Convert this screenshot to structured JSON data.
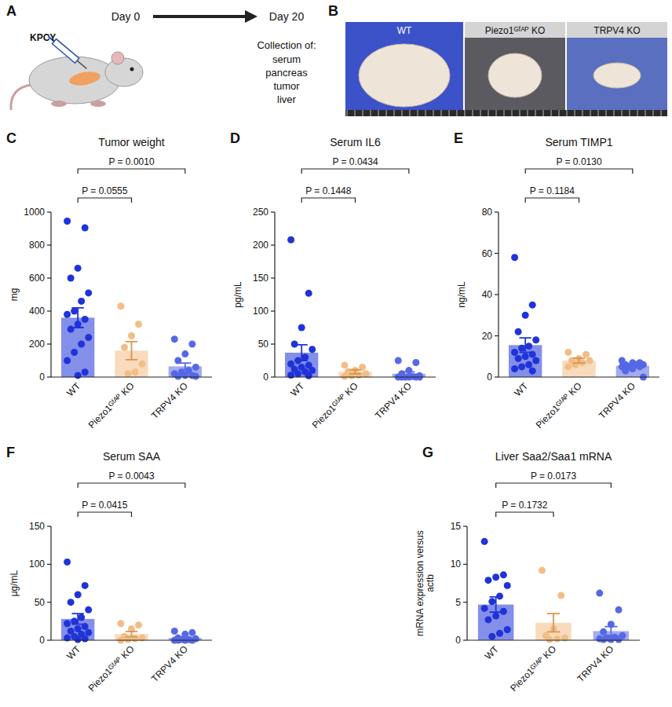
{
  "panels": {
    "A": {
      "label": "A",
      "day_start": "Day 0",
      "day_end": "Day 20",
      "injection": "KPCY",
      "collection_title": "Collection of:",
      "collected": [
        "serum",
        "pancreas",
        "tumor",
        "liver"
      ]
    },
    "B": {
      "label": "B",
      "photo_labels": [
        "WT",
        "Piezo1ᴳᶠᴬᴾ KO",
        "TRPV4 KO"
      ]
    }
  },
  "chart_data": [
    {
      "type": "bar",
      "panel": "C",
      "title": "Tumor weight",
      "y_label": "mg",
      "categories": [
        "WT",
        "Piezo1ᴳᶠᴬᴾ KO",
        "TRPV4 KO"
      ],
      "values": [
        360,
        160,
        65
      ],
      "errors": [
        60,
        55,
        20
      ],
      "points": [
        [
          945,
          905,
          660,
          600,
          510,
          460,
          400,
          380,
          350,
          320,
          290,
          240,
          200,
          150,
          100,
          30,
          10
        ],
        [
          430,
          320,
          250,
          180,
          80,
          30,
          20
        ],
        [
          230,
          200,
          140,
          100,
          60,
          40,
          30,
          20,
          10,
          10,
          5,
          5
        ]
      ],
      "colors": [
        "#1f33d9",
        "#f2be86",
        "#5568e6"
      ],
      "ylim": [
        0,
        1000
      ],
      "yticks": [
        0,
        200,
        400,
        600,
        800,
        1000
      ],
      "annotations": [
        "P = 0.0555",
        "P = 0.0010"
      ]
    },
    {
      "type": "bar",
      "panel": "D",
      "title": "Serum IL6",
      "y_label": "pg/mL",
      "categories": [
        "WT",
        "Piezo1ᴳᶠᴬᴾ KO",
        "TRPV4 KO"
      ],
      "values": [
        37,
        8,
        5
      ],
      "errors": [
        12,
        3,
        3
      ],
      "points": [
        [
          208,
          127,
          75,
          50,
          42,
          30,
          25,
          20,
          18,
          15,
          12,
          10,
          8,
          5,
          3,
          2
        ],
        [
          18,
          15,
          10,
          8,
          5,
          3,
          2,
          1
        ],
        [
          25,
          22,
          10,
          5,
          2,
          1,
          0,
          0,
          0,
          0,
          0,
          0
        ]
      ],
      "colors": [
        "#1f33d9",
        "#f2be86",
        "#5568e6"
      ],
      "ylim": [
        0,
        250
      ],
      "yticks": [
        0,
        50,
        100,
        150,
        200,
        250
      ],
      "annotations": [
        "P = 0.1448",
        "P = 0.0434"
      ]
    },
    {
      "type": "bar",
      "panel": "E",
      "title": "Serum TIMP1",
      "y_label": "ng/mL",
      "categories": [
        "WT",
        "Piezo1ᴳᶠᴬᴾ KO",
        "TRPV4 KO"
      ],
      "values": [
        15.5,
        8,
        5.5
      ],
      "errors": [
        3.5,
        1.2,
        0.8
      ],
      "points": [
        [
          58,
          35,
          30,
          22,
          18,
          15,
          14,
          12,
          11,
          10,
          9,
          8,
          6,
          5,
          4,
          3
        ],
        [
          12,
          11,
          9,
          8,
          8,
          7,
          6,
          5
        ],
        [
          8,
          7,
          7,
          6,
          6,
          6,
          5,
          5,
          5,
          4,
          3,
          0
        ]
      ],
      "colors": [
        "#1f33d9",
        "#f2be86",
        "#5568e6"
      ],
      "ylim": [
        0,
        80
      ],
      "yticks": [
        0,
        20,
        40,
        60,
        80
      ],
      "annotations": [
        "P = 0.1184",
        "P = 0.0130"
      ]
    },
    {
      "type": "bar",
      "panel": "F",
      "title": "Serum SAA",
      "y_label": "μg/mL",
      "categories": [
        "WT",
        "Piezo1ᴳᶠᴬᴾ KO",
        "TRPV4 KO"
      ],
      "values": [
        28,
        8,
        3
      ],
      "errors": [
        7,
        3.5,
        1.2
      ],
      "points": [
        [
          103,
          72,
          60,
          50,
          40,
          30,
          25,
          22,
          18,
          15,
          12,
          10,
          8,
          5,
          3,
          2,
          1
        ],
        [
          22,
          20,
          15,
          5,
          3,
          2,
          1,
          0
        ],
        [
          12,
          10,
          8,
          3,
          2,
          1,
          1,
          0,
          0,
          0,
          0
        ]
      ],
      "colors": [
        "#1f33d9",
        "#f2be86",
        "#5568e6"
      ],
      "ylim": [
        0,
        150
      ],
      "yticks": [
        0,
        50,
        100,
        150
      ],
      "annotations": [
        "P = 0.0415",
        "P = 0.0043"
      ]
    },
    {
      "type": "bar",
      "panel": "G",
      "title": "Liver Saa2/Saa1 mRNA",
      "y_label": "mRNA expression versus actb",
      "categories": [
        "WT",
        "Piezo1ᴳᶠᴬᴾ KO",
        "TRPV4 KO"
      ],
      "values": [
        4.7,
        2.3,
        1.2
      ],
      "errors": [
        1,
        1.2,
        0.6
      ],
      "points": [
        [
          13,
          8.6,
          8.3,
          7.9,
          7.2,
          5.8,
          5.1,
          4.2,
          3.8,
          3.2,
          2.7,
          1.4,
          0.9,
          0.5
        ],
        [
          9.2,
          5.9,
          1.5,
          0.6,
          0.3,
          0.2,
          0.1
        ],
        [
          6.2,
          4,
          2.1,
          1.1,
          0.6,
          0.4,
          0.3,
          0.2,
          0.1,
          0.1,
          0.1
        ]
      ],
      "colors": [
        "#1f33d9",
        "#f2be86",
        "#5568e6"
      ],
      "ylim": [
        0,
        15
      ],
      "yticks": [
        0,
        5,
        10,
        15
      ],
      "annotations": [
        "P = 0.1732",
        "P = 0.0173"
      ]
    }
  ]
}
